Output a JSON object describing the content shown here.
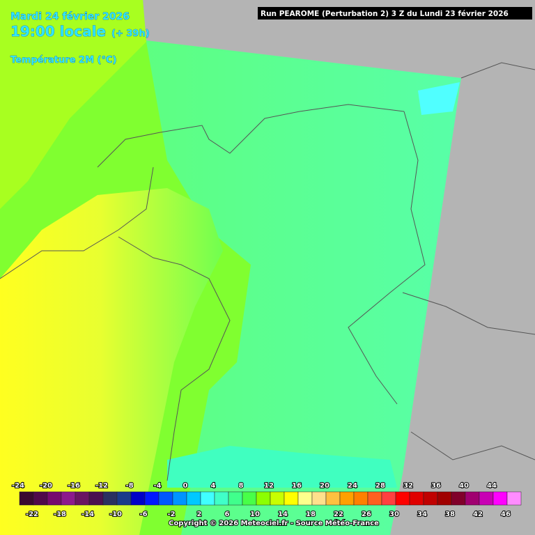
{
  "header": {
    "date": "Mardi 24 février 2026",
    "time": "19:00 locale",
    "lead": "(+ 39h)",
    "parameter": "Température 2M (°C)",
    "run": "Run PEAROME (Perturbation 2) 3 Z du Lundi 23 février 2026"
  },
  "legend": {
    "labels": [
      -24,
      -22,
      -20,
      -18,
      -16,
      -14,
      -12,
      -10,
      -8,
      -6,
      -4,
      -2,
      0,
      2,
      4,
      6,
      8,
      10,
      12,
      14,
      16,
      18,
      20,
      22,
      24,
      26,
      28,
      30,
      32,
      34,
      36,
      38,
      40,
      42,
      44,
      46
    ],
    "colors": [
      "#3a0a30",
      "#500a4a",
      "#760a6e",
      "#8c1a8c",
      "#6a1462",
      "#4a1050",
      "#2a3060",
      "#1a3a8a",
      "#0000c8",
      "#0018ff",
      "#0058ff",
      "#0094ff",
      "#00c8ff",
      "#40ffff",
      "#40ffc8",
      "#40ff8c",
      "#48ff48",
      "#8cff00",
      "#c8ff00",
      "#ffff00",
      "#ffff8c",
      "#ffe08c",
      "#ffc040",
      "#ffa000",
      "#ff8000",
      "#ff6020",
      "#ff4040",
      "#ff0000",
      "#e00000",
      "#c00000",
      "#a00000",
      "#80002a",
      "#a00070",
      "#c800b4",
      "#ff00ff",
      "#ff8cff"
    ]
  },
  "copyright": "Copyright © 2026 Meteociel.fr - Source Météo-France"
}
